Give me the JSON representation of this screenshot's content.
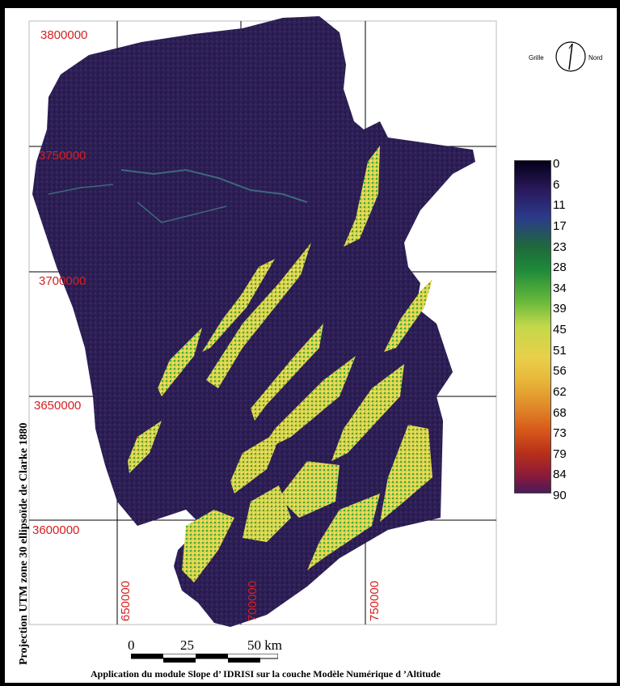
{
  "map": {
    "grid_y_labels": [
      "3800000",
      "3750000",
      "3700000",
      "3650000",
      "3600000"
    ],
    "grid_x_labels": [
      "650000",
      "700000",
      "750000"
    ],
    "projection": "Projection UTM zone 30 ellipsoïde de Clarke 1880",
    "caption": "Application du module Slope d’ IDRISI sur la couche Modèle Numérique d ’Altitude"
  },
  "north_arrow": {
    "left_label": "Grille",
    "right_label": "Nord"
  },
  "scale_bar": {
    "label_0": "0",
    "label_25": "25",
    "label_50": "50 km"
  },
  "legend": {
    "values": [
      "0",
      "6",
      "11",
      "17",
      "23",
      "28",
      "34",
      "39",
      "45",
      "51",
      "56",
      "62",
      "68",
      "73",
      "79",
      "84",
      "90"
    ],
    "colors": {
      "low": "#050018",
      "mid": "#64b83a",
      "high": "#e08a2a",
      "top": "#4a1a5a"
    }
  },
  "colors": {
    "terrain_dark": "#2e1f55",
    "grid_line": "#000000",
    "coord_text": "#d42020"
  }
}
